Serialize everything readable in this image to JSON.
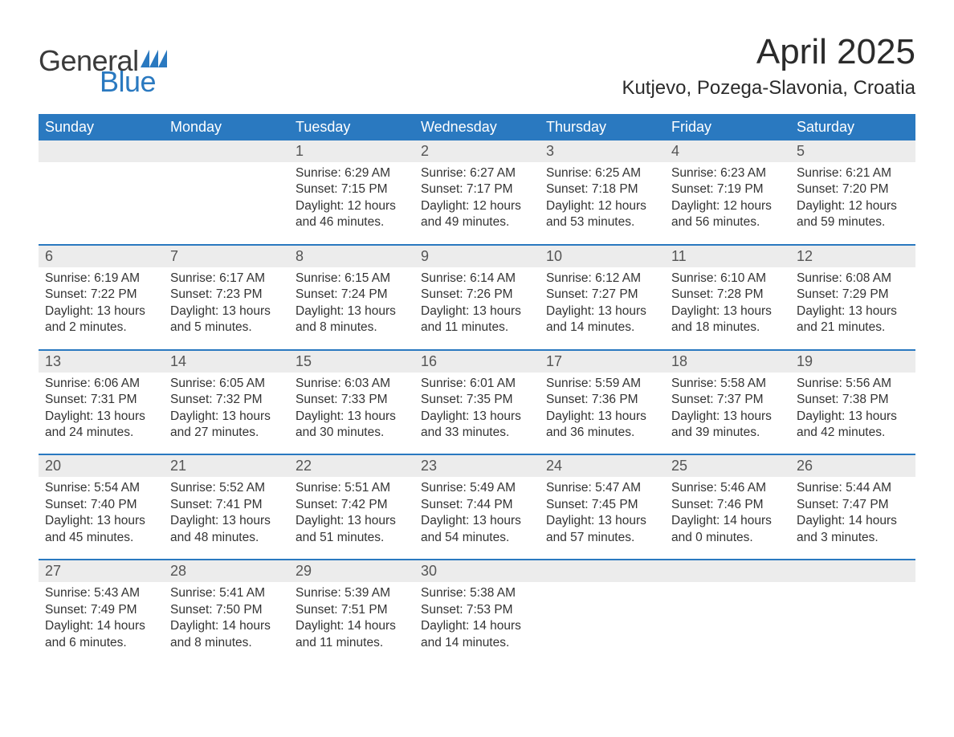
{
  "logo": {
    "general": "General",
    "blue": "Blue",
    "flag_color": "#2a79c0"
  },
  "title": "April 2025",
  "location": "Kutjevo, Pozega-Slavonia, Croatia",
  "colors": {
    "header_bg": "#2a79c0",
    "header_text": "#ffffff",
    "daynum_bg": "#ececec",
    "daynum_text": "#555555",
    "body_text": "#333333",
    "week_border": "#2a79c0",
    "page_bg": "#ffffff"
  },
  "typography": {
    "title_fontsize": 44,
    "location_fontsize": 24,
    "dayheader_fontsize": 18,
    "daynum_fontsize": 18,
    "cell_fontsize": 15.5,
    "logo_fontsize": 36
  },
  "dayheaders": [
    "Sunday",
    "Monday",
    "Tuesday",
    "Wednesday",
    "Thursday",
    "Friday",
    "Saturday"
  ],
  "weeks": [
    {
      "nums": [
        "",
        "",
        "1",
        "2",
        "3",
        "4",
        "5"
      ],
      "cells": [
        {
          "sunrise": "",
          "sunset": "",
          "daylight1": "",
          "daylight2": ""
        },
        {
          "sunrise": "",
          "sunset": "",
          "daylight1": "",
          "daylight2": ""
        },
        {
          "sunrise": "Sunrise: 6:29 AM",
          "sunset": "Sunset: 7:15 PM",
          "daylight1": "Daylight: 12 hours",
          "daylight2": "and 46 minutes."
        },
        {
          "sunrise": "Sunrise: 6:27 AM",
          "sunset": "Sunset: 7:17 PM",
          "daylight1": "Daylight: 12 hours",
          "daylight2": "and 49 minutes."
        },
        {
          "sunrise": "Sunrise: 6:25 AM",
          "sunset": "Sunset: 7:18 PM",
          "daylight1": "Daylight: 12 hours",
          "daylight2": "and 53 minutes."
        },
        {
          "sunrise": "Sunrise: 6:23 AM",
          "sunset": "Sunset: 7:19 PM",
          "daylight1": "Daylight: 12 hours",
          "daylight2": "and 56 minutes."
        },
        {
          "sunrise": "Sunrise: 6:21 AM",
          "sunset": "Sunset: 7:20 PM",
          "daylight1": "Daylight: 12 hours",
          "daylight2": "and 59 minutes."
        }
      ]
    },
    {
      "nums": [
        "6",
        "7",
        "8",
        "9",
        "10",
        "11",
        "12"
      ],
      "cells": [
        {
          "sunrise": "Sunrise: 6:19 AM",
          "sunset": "Sunset: 7:22 PM",
          "daylight1": "Daylight: 13 hours",
          "daylight2": "and 2 minutes."
        },
        {
          "sunrise": "Sunrise: 6:17 AM",
          "sunset": "Sunset: 7:23 PM",
          "daylight1": "Daylight: 13 hours",
          "daylight2": "and 5 minutes."
        },
        {
          "sunrise": "Sunrise: 6:15 AM",
          "sunset": "Sunset: 7:24 PM",
          "daylight1": "Daylight: 13 hours",
          "daylight2": "and 8 minutes."
        },
        {
          "sunrise": "Sunrise: 6:14 AM",
          "sunset": "Sunset: 7:26 PM",
          "daylight1": "Daylight: 13 hours",
          "daylight2": "and 11 minutes."
        },
        {
          "sunrise": "Sunrise: 6:12 AM",
          "sunset": "Sunset: 7:27 PM",
          "daylight1": "Daylight: 13 hours",
          "daylight2": "and 14 minutes."
        },
        {
          "sunrise": "Sunrise: 6:10 AM",
          "sunset": "Sunset: 7:28 PM",
          "daylight1": "Daylight: 13 hours",
          "daylight2": "and 18 minutes."
        },
        {
          "sunrise": "Sunrise: 6:08 AM",
          "sunset": "Sunset: 7:29 PM",
          "daylight1": "Daylight: 13 hours",
          "daylight2": "and 21 minutes."
        }
      ]
    },
    {
      "nums": [
        "13",
        "14",
        "15",
        "16",
        "17",
        "18",
        "19"
      ],
      "cells": [
        {
          "sunrise": "Sunrise: 6:06 AM",
          "sunset": "Sunset: 7:31 PM",
          "daylight1": "Daylight: 13 hours",
          "daylight2": "and 24 minutes."
        },
        {
          "sunrise": "Sunrise: 6:05 AM",
          "sunset": "Sunset: 7:32 PM",
          "daylight1": "Daylight: 13 hours",
          "daylight2": "and 27 minutes."
        },
        {
          "sunrise": "Sunrise: 6:03 AM",
          "sunset": "Sunset: 7:33 PM",
          "daylight1": "Daylight: 13 hours",
          "daylight2": "and 30 minutes."
        },
        {
          "sunrise": "Sunrise: 6:01 AM",
          "sunset": "Sunset: 7:35 PM",
          "daylight1": "Daylight: 13 hours",
          "daylight2": "and 33 minutes."
        },
        {
          "sunrise": "Sunrise: 5:59 AM",
          "sunset": "Sunset: 7:36 PM",
          "daylight1": "Daylight: 13 hours",
          "daylight2": "and 36 minutes."
        },
        {
          "sunrise": "Sunrise: 5:58 AM",
          "sunset": "Sunset: 7:37 PM",
          "daylight1": "Daylight: 13 hours",
          "daylight2": "and 39 minutes."
        },
        {
          "sunrise": "Sunrise: 5:56 AM",
          "sunset": "Sunset: 7:38 PM",
          "daylight1": "Daylight: 13 hours",
          "daylight2": "and 42 minutes."
        }
      ]
    },
    {
      "nums": [
        "20",
        "21",
        "22",
        "23",
        "24",
        "25",
        "26"
      ],
      "cells": [
        {
          "sunrise": "Sunrise: 5:54 AM",
          "sunset": "Sunset: 7:40 PM",
          "daylight1": "Daylight: 13 hours",
          "daylight2": "and 45 minutes."
        },
        {
          "sunrise": "Sunrise: 5:52 AM",
          "sunset": "Sunset: 7:41 PM",
          "daylight1": "Daylight: 13 hours",
          "daylight2": "and 48 minutes."
        },
        {
          "sunrise": "Sunrise: 5:51 AM",
          "sunset": "Sunset: 7:42 PM",
          "daylight1": "Daylight: 13 hours",
          "daylight2": "and 51 minutes."
        },
        {
          "sunrise": "Sunrise: 5:49 AM",
          "sunset": "Sunset: 7:44 PM",
          "daylight1": "Daylight: 13 hours",
          "daylight2": "and 54 minutes."
        },
        {
          "sunrise": "Sunrise: 5:47 AM",
          "sunset": "Sunset: 7:45 PM",
          "daylight1": "Daylight: 13 hours",
          "daylight2": "and 57 minutes."
        },
        {
          "sunrise": "Sunrise: 5:46 AM",
          "sunset": "Sunset: 7:46 PM",
          "daylight1": "Daylight: 14 hours",
          "daylight2": "and 0 minutes."
        },
        {
          "sunrise": "Sunrise: 5:44 AM",
          "sunset": "Sunset: 7:47 PM",
          "daylight1": "Daylight: 14 hours",
          "daylight2": "and 3 minutes."
        }
      ]
    },
    {
      "nums": [
        "27",
        "28",
        "29",
        "30",
        "",
        "",
        ""
      ],
      "cells": [
        {
          "sunrise": "Sunrise: 5:43 AM",
          "sunset": "Sunset: 7:49 PM",
          "daylight1": "Daylight: 14 hours",
          "daylight2": "and 6 minutes."
        },
        {
          "sunrise": "Sunrise: 5:41 AM",
          "sunset": "Sunset: 7:50 PM",
          "daylight1": "Daylight: 14 hours",
          "daylight2": "and 8 minutes."
        },
        {
          "sunrise": "Sunrise: 5:39 AM",
          "sunset": "Sunset: 7:51 PM",
          "daylight1": "Daylight: 14 hours",
          "daylight2": "and 11 minutes."
        },
        {
          "sunrise": "Sunrise: 5:38 AM",
          "sunset": "Sunset: 7:53 PM",
          "daylight1": "Daylight: 14 hours",
          "daylight2": "and 14 minutes."
        },
        {
          "sunrise": "",
          "sunset": "",
          "daylight1": "",
          "daylight2": ""
        },
        {
          "sunrise": "",
          "sunset": "",
          "daylight1": "",
          "daylight2": ""
        },
        {
          "sunrise": "",
          "sunset": "",
          "daylight1": "",
          "daylight2": ""
        }
      ]
    }
  ]
}
